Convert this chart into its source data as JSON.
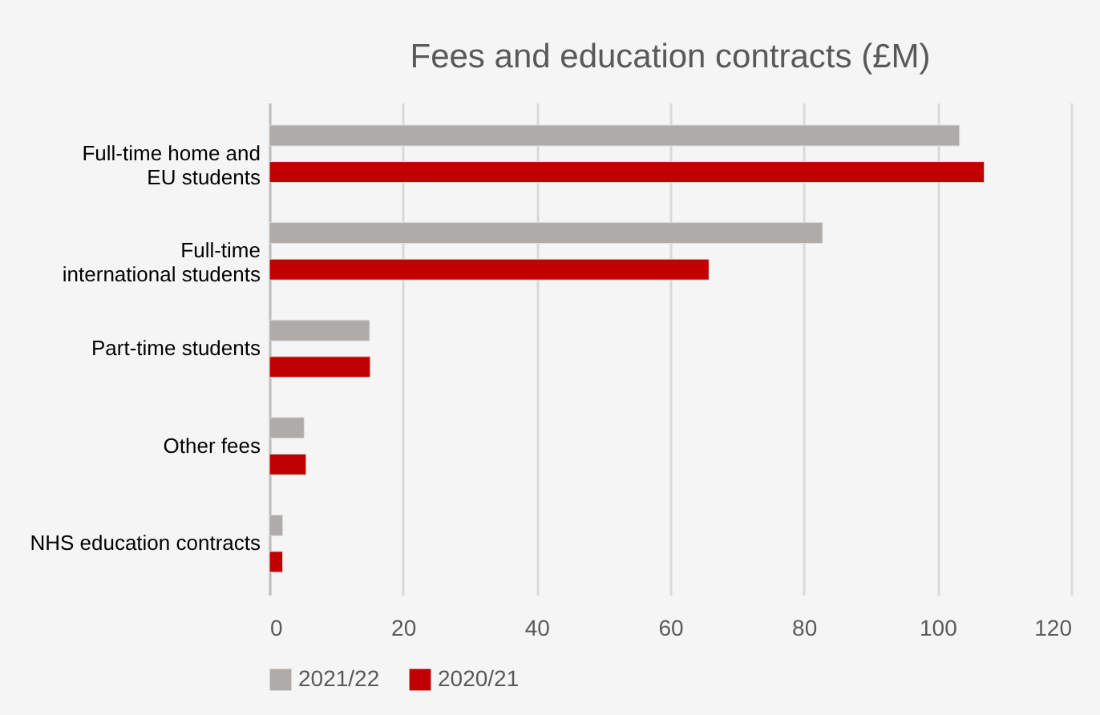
{
  "chart_data": {
    "type": "bar",
    "orientation": "horizontal",
    "title": "Fees and education contracts (£M)",
    "categories": [
      "Full-time home and\nEU students",
      "Full-time\ninternational students",
      "Part-time students",
      "Other fees",
      "NHS education contracts"
    ],
    "series": [
      {
        "name": "2021/22",
        "color": "#afaba9",
        "values": [
          103.3,
          82.8,
          15.0,
          5.2,
          2.0
        ]
      },
      {
        "name": "2020/21",
        "color": "#c00000",
        "values": [
          107.0,
          65.8,
          15.1,
          5.5,
          2.0
        ]
      }
    ],
    "xlim": [
      0,
      120
    ],
    "xticks": [
      0,
      20,
      40,
      60,
      80,
      100,
      120
    ],
    "grid": "x",
    "legend": "bottom"
  }
}
